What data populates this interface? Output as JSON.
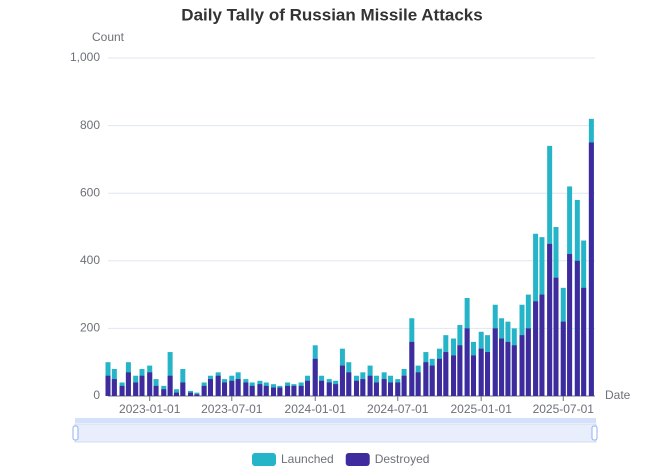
{
  "chart_data": {
    "type": "bar",
    "title": "Daily Tally of Russian Missile Attacks",
    "y_label": "Count",
    "x_label": "Date",
    "x": [
      "2022-10-01",
      "2022-10-15",
      "2022-11-01",
      "2022-11-15",
      "2022-12-01",
      "2022-12-15",
      "2023-01-01",
      "2023-01-15",
      "2023-02-01",
      "2023-02-15",
      "2023-03-01",
      "2023-03-15",
      "2023-04-01",
      "2023-04-15",
      "2023-05-01",
      "2023-05-15",
      "2023-06-01",
      "2023-06-15",
      "2023-07-01",
      "2023-07-15",
      "2023-08-01",
      "2023-08-15",
      "2023-09-01",
      "2023-09-15",
      "2023-10-01",
      "2023-10-15",
      "2023-11-01",
      "2023-11-15",
      "2023-12-01",
      "2023-12-15",
      "2024-01-01",
      "2024-01-15",
      "2024-02-01",
      "2024-02-15",
      "2024-03-01",
      "2024-03-15",
      "2024-04-01",
      "2024-04-15",
      "2024-05-01",
      "2024-05-15",
      "2024-06-01",
      "2024-06-15",
      "2024-07-01",
      "2024-07-15",
      "2024-08-01",
      "2024-08-15",
      "2024-09-01",
      "2024-09-15",
      "2024-10-01",
      "2024-10-15",
      "2024-11-01",
      "2024-11-15",
      "2024-12-01",
      "2024-12-15",
      "2025-01-01",
      "2025-01-15",
      "2025-02-01",
      "2025-02-15",
      "2025-03-01",
      "2025-03-15",
      "2025-04-01",
      "2025-04-15",
      "2025-05-01",
      "2025-05-15",
      "2025-06-01",
      "2025-06-15",
      "2025-07-01",
      "2025-07-15",
      "2025-08-01",
      "2025-08-15",
      "2025-09-01"
    ],
    "series": [
      {
        "name": "Launched",
        "color": "#26b5c8",
        "values": [
          100,
          80,
          40,
          100,
          60,
          80,
          90,
          50,
          30,
          130,
          20,
          80,
          15,
          10,
          40,
          60,
          70,
          50,
          60,
          70,
          50,
          40,
          45,
          40,
          35,
          30,
          40,
          35,
          40,
          60,
          150,
          60,
          50,
          45,
          140,
          100,
          60,
          70,
          90,
          60,
          70,
          60,
          50,
          80,
          230,
          90,
          130,
          110,
          140,
          180,
          170,
          210,
          290,
          160,
          190,
          180,
          270,
          230,
          220,
          200,
          270,
          300,
          480,
          470,
          740,
          500,
          320,
          620,
          580,
          460,
          820
        ]
      },
      {
        "name": "Destroyed",
        "color": "#3f2a9e",
        "values": [
          60,
          50,
          30,
          70,
          40,
          60,
          70,
          30,
          20,
          60,
          10,
          40,
          10,
          5,
          30,
          50,
          60,
          40,
          45,
          50,
          40,
          30,
          35,
          30,
          25,
          25,
          30,
          30,
          30,
          45,
          110,
          45,
          40,
          35,
          90,
          70,
          45,
          50,
          60,
          40,
          50,
          40,
          40,
          60,
          160,
          70,
          100,
          90,
          110,
          130,
          120,
          150,
          200,
          120,
          140,
          130,
          200,
          170,
          160,
          150,
          180,
          200,
          280,
          300,
          450,
          350,
          220,
          420,
          400,
          320,
          750
        ]
      }
    ],
    "xlim": [
      "2022-10-01",
      "2025-09-09"
    ],
    "xticks": [
      "2023-01-01",
      "2023-07-01",
      "2024-01-01",
      "2024-07-01",
      "2025-01-01",
      "2025-07-01"
    ],
    "ylim": [
      0,
      1000
    ],
    "yticks": [
      0,
      200,
      400,
      600,
      800,
      {
        "value": 1000,
        "label": "1,000"
      }
    ],
    "grid": true
  }
}
